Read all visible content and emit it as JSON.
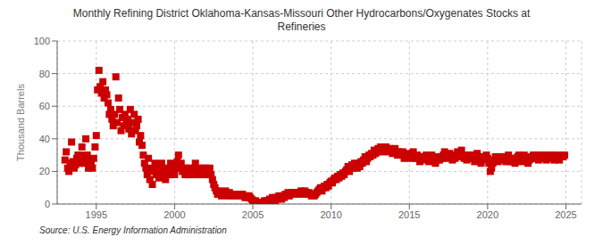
{
  "chart_data": {
    "type": "scatter",
    "title": "Monthly Refining District Oklahoma-Kansas-Missouri Other Hydrocarbons/Oxygenates Stocks at\nRefineries",
    "ylabel": "Thousand Barrels",
    "annotations": [
      "Source: U.S. Energy Information Administration"
    ],
    "color": "#cc0000",
    "marker": "square",
    "grid": true,
    "xlim": [
      1992.5,
      2026
    ],
    "ylim": [
      0,
      100
    ],
    "xticks": [
      1995,
      2000,
      2005,
      2010,
      2015,
      2020,
      2025
    ],
    "yticks": [
      0,
      20,
      40,
      60,
      80,
      100
    ],
    "x": [
      1993.0,
      1993.08,
      1993.17,
      1993.25,
      1993.33,
      1993.42,
      1993.5,
      1993.58,
      1993.67,
      1993.75,
      1993.83,
      1993.92,
      1994.0,
      1994.08,
      1994.17,
      1994.25,
      1994.33,
      1994.42,
      1994.5,
      1994.58,
      1994.67,
      1994.75,
      1994.83,
      1994.92,
      1995.0,
      1995.08,
      1995.17,
      1995.25,
      1995.33,
      1995.42,
      1995.5,
      1995.58,
      1995.67,
      1995.75,
      1995.83,
      1995.92,
      1996.0,
      1996.08,
      1996.17,
      1996.25,
      1996.33,
      1996.42,
      1996.5,
      1996.58,
      1996.67,
      1996.75,
      1996.83,
      1996.92,
      1997.0,
      1997.08,
      1997.17,
      1997.25,
      1997.33,
      1997.42,
      1997.5,
      1997.58,
      1997.67,
      1997.75,
      1997.83,
      1997.92,
      1998.0,
      1998.08,
      1998.17,
      1998.25,
      1998.33,
      1998.42,
      1998.5,
      1998.58,
      1998.67,
      1998.75,
      1998.83,
      1998.92,
      1999.0,
      1999.08,
      1999.17,
      1999.25,
      1999.33,
      1999.42,
      1999.5,
      1999.58,
      1999.67,
      1999.75,
      1999.83,
      1999.92,
      2000.0,
      2000.08,
      2000.17,
      2000.25,
      2000.33,
      2000.42,
      2000.5,
      2000.58,
      2000.67,
      2000.75,
      2000.83,
      2000.92,
      2001.0,
      2001.08,
      2001.17,
      2001.25,
      2001.33,
      2001.42,
      2001.5,
      2001.58,
      2001.67,
      2001.75,
      2001.83,
      2001.92,
      2002.0,
      2002.08,
      2002.17,
      2002.25,
      2002.33,
      2002.42,
      2002.5,
      2002.58,
      2002.67,
      2002.75,
      2002.83,
      2002.92,
      2003.0,
      2003.08,
      2003.17,
      2003.25,
      2003.33,
      2003.42,
      2003.5,
      2003.58,
      2003.67,
      2003.75,
      2003.83,
      2003.92,
      2004.0,
      2004.08,
      2004.17,
      2004.25,
      2004.33,
      2004.42,
      2004.5,
      2004.58,
      2004.67,
      2004.75,
      2004.83,
      2004.92,
      2005.0,
      2005.08,
      2005.17,
      2005.25,
      2005.33,
      2005.42,
      2005.5,
      2005.58,
      2005.67,
      2005.75,
      2005.83,
      2005.92,
      2006.0,
      2006.08,
      2006.17,
      2006.25,
      2006.33,
      2006.42,
      2006.5,
      2006.58,
      2006.67,
      2006.75,
      2006.83,
      2006.92,
      2007.0,
      2007.08,
      2007.17,
      2007.25,
      2007.33,
      2007.42,
      2007.5,
      2007.58,
      2007.67,
      2007.75,
      2007.83,
      2007.92,
      2008.0,
      2008.08,
      2008.17,
      2008.25,
      2008.33,
      2008.42,
      2008.5,
      2008.58,
      2008.67,
      2008.75,
      2008.83,
      2008.92,
      2009.0,
      2009.08,
      2009.17,
      2009.25,
      2009.33,
      2009.42,
      2009.5,
      2009.58,
      2009.67,
      2009.75,
      2009.83,
      2009.92,
      2010.0,
      2010.08,
      2010.17,
      2010.25,
      2010.33,
      2010.42,
      2010.5,
      2010.58,
      2010.67,
      2010.75,
      2010.83,
      2010.92,
      2011.0,
      2011.08,
      2011.17,
      2011.25,
      2011.33,
      2011.42,
      2011.5,
      2011.58,
      2011.67,
      2011.75,
      2011.83,
      2011.92,
      2012.0,
      2012.08,
      2012.17,
      2012.25,
      2012.33,
      2012.42,
      2012.5,
      2012.58,
      2012.67,
      2012.75,
      2012.83,
      2012.92,
      2013.0,
      2013.08,
      2013.17,
      2013.25,
      2013.33,
      2013.42,
      2013.5,
      2013.58,
      2013.67,
      2013.75,
      2013.83,
      2013.92,
      2014.0,
      2014.08,
      2014.17,
      2014.25,
      2014.33,
      2014.42,
      2014.5,
      2014.58,
      2014.67,
      2014.75,
      2014.83,
      2014.92,
      2015.0,
      2015.08,
      2015.17,
      2015.25,
      2015.33,
      2015.42,
      2015.5,
      2015.58,
      2015.67,
      2015.75,
      2015.83,
      2015.92,
      2016.0,
      2016.08,
      2016.17,
      2016.25,
      2016.33,
      2016.42,
      2016.5,
      2016.58,
      2016.67,
      2016.75,
      2016.83,
      2016.92,
      2017.0,
      2017.08,
      2017.17,
      2017.25,
      2017.33,
      2017.42,
      2017.5,
      2017.58,
      2017.67,
      2017.75,
      2017.83,
      2017.92,
      2018.0,
      2018.08,
      2018.17,
      2018.25,
      2018.33,
      2018.42,
      2018.5,
      2018.58,
      2018.67,
      2018.75,
      2018.83,
      2018.92,
      2019.0,
      2019.08,
      2019.17,
      2019.25,
      2019.33,
      2019.42,
      2019.5,
      2019.58,
      2019.67,
      2019.75,
      2019.83,
      2019.92,
      2020.0,
      2020.08,
      2020.17,
      2020.25,
      2020.33,
      2020.42,
      2020.5,
      2020.58,
      2020.67,
      2020.75,
      2020.83,
      2020.92,
      2021.0,
      2021.08,
      2021.17,
      2021.25,
      2021.33,
      2021.42,
      2021.5,
      2021.58,
      2021.67,
      2021.75,
      2021.83,
      2021.92,
      2022.0,
      2022.08,
      2022.17,
      2022.25,
      2022.33,
      2022.42,
      2022.5,
      2022.58,
      2022.67,
      2022.75,
      2022.83,
      2022.92,
      2023.0,
      2023.08,
      2023.17,
      2023.25,
      2023.33,
      2023.42,
      2023.5,
      2023.58,
      2023.67,
      2023.75,
      2023.83,
      2023.92,
      2024.0,
      2024.08,
      2024.17,
      2024.25,
      2024.33,
      2024.42,
      2024.5,
      2024.58,
      2024.67,
      2024.75,
      2024.83,
      2024.92
    ],
    "values": [
      27,
      32,
      22,
      20,
      25,
      38,
      26,
      22,
      24,
      28,
      30,
      25,
      30,
      35,
      28,
      25,
      40,
      30,
      22,
      27,
      25,
      22,
      28,
      35,
      42,
      70,
      82,
      72,
      68,
      75,
      65,
      70,
      67,
      62,
      55,
      58,
      52,
      48,
      55,
      78,
      50,
      65,
      58,
      45,
      53,
      48,
      55,
      50,
      52,
      46,
      58,
      43,
      50,
      55,
      45,
      48,
      52,
      38,
      42,
      36,
      30,
      25,
      22,
      18,
      28,
      15,
      22,
      12,
      20,
      25,
      18,
      22,
      16,
      20,
      25,
      22,
      18,
      15,
      20,
      22,
      18,
      25,
      20,
      22,
      18,
      22,
      26,
      30,
      22,
      25,
      20,
      22,
      18,
      22,
      20,
      18,
      22,
      20,
      18,
      22,
      25,
      20,
      18,
      22,
      20,
      18,
      22,
      20,
      22,
      18,
      20,
      22,
      18,
      15,
      12,
      10,
      8,
      6,
      8,
      6,
      5,
      7,
      6,
      8,
      6,
      5,
      7,
      6,
      5,
      6,
      5,
      6,
      6,
      5,
      6,
      5,
      6,
      5,
      4,
      5,
      4,
      5,
      4,
      3,
      2,
      1,
      2,
      1,
      0,
      1,
      0,
      1,
      0,
      2,
      1,
      2,
      2,
      3,
      2,
      4,
      3,
      2,
      4,
      3,
      5,
      4,
      3,
      5,
      4,
      6,
      5,
      7,
      5,
      6,
      7,
      6,
      7,
      6,
      7,
      6,
      7,
      8,
      7,
      6,
      8,
      7,
      6,
      7,
      6,
      5,
      6,
      5,
      6,
      7,
      8,
      9,
      10,
      8,
      10,
      11,
      10,
      12,
      11,
      13,
      14,
      13,
      15,
      16,
      15,
      17,
      16,
      18,
      17,
      19,
      18,
      20,
      21,
      23,
      20,
      22,
      24,
      22,
      25,
      24,
      22,
      25,
      23,
      26,
      25,
      27,
      29,
      26,
      28,
      30,
      29,
      31,
      30,
      33,
      31,
      32,
      34,
      33,
      35,
      32,
      34,
      33,
      35,
      34,
      32,
      34,
      33,
      31,
      33,
      34,
      32,
      30,
      32,
      31,
      30,
      32,
      28,
      30,
      29,
      31,
      30,
      28,
      30,
      32,
      29,
      28,
      30,
      28,
      26,
      29,
      27,
      29,
      28,
      30,
      28,
      26,
      29,
      30,
      28,
      27,
      25,
      27,
      29,
      27,
      29,
      28,
      30,
      32,
      29,
      28,
      30,
      31,
      29,
      27,
      30,
      28,
      30,
      32,
      29,
      31,
      33,
      30,
      28,
      30,
      27,
      29,
      30,
      28,
      30,
      28,
      26,
      29,
      31,
      29,
      27,
      25,
      27,
      29,
      28,
      30,
      28,
      25,
      20,
      22,
      25,
      27,
      29,
      28,
      26,
      28,
      29,
      27,
      29,
      28,
      26,
      28,
      30,
      28,
      26,
      28,
      26,
      25,
      27,
      29,
      30,
      28,
      26,
      28,
      30,
      29,
      27,
      25,
      27,
      29,
      28,
      30,
      28,
      30,
      29,
      27,
      29,
      30,
      28,
      30,
      29,
      27,
      29,
      30,
      28,
      30,
      29,
      27,
      30,
      29,
      28,
      27,
      29,
      30,
      29,
      30
    ]
  }
}
